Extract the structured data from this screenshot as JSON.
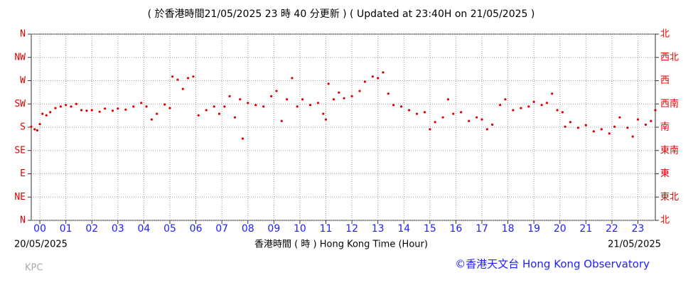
{
  "chart_data": {
    "type": "scatter",
    "title": "( 於香港時間21/05/2025 23 時 40 分更新 ) ( Updated at 23:40H on 21/05/2025 )",
    "x_label": "香港時間 ( 時 )  Hong Kong Time (Hour)",
    "start_date": "20/05/2025",
    "end_date": "21/05/2025",
    "station": "KPC",
    "credit": "©香港天文台 Hong Kong Observatory",
    "grid": true,
    "color": "#e00000",
    "xlim": [
      -0.33,
      23.67
    ],
    "xticks": [
      {
        "value": 0,
        "label": "00"
      },
      {
        "value": 1,
        "label": "01"
      },
      {
        "value": 2,
        "label": "02"
      },
      {
        "value": 3,
        "label": "03"
      },
      {
        "value": 4,
        "label": "04"
      },
      {
        "value": 5,
        "label": "05"
      },
      {
        "value": 6,
        "label": "06"
      },
      {
        "value": 7,
        "label": "07"
      },
      {
        "value": 8,
        "label": "08"
      },
      {
        "value": 9,
        "label": "09"
      },
      10,
      11,
      12,
      13,
      14,
      15,
      16,
      17,
      18,
      19,
      20,
      21,
      22,
      23
    ],
    "ylim": [
      0,
      360
    ],
    "yticks": [
      {
        "value": 0,
        "label": "N"
      },
      {
        "value": 45,
        "label": "NE"
      },
      {
        "value": 90,
        "label": "E"
      },
      {
        "value": 135,
        "label": "SE"
      },
      {
        "value": 180,
        "label": "S"
      },
      {
        "value": 225,
        "label": "SW"
      },
      {
        "value": 270,
        "label": "W"
      },
      {
        "value": 315,
        "label": "NW"
      },
      {
        "value": 360,
        "label": "N"
      }
    ],
    "y2lim": [
      0,
      360
    ],
    "y2ticks": [
      {
        "value": 0,
        "label": "北"
      },
      {
        "value": 45,
        "label": "東北"
      },
      {
        "value": 90,
        "label": "東"
      },
      {
        "value": 135,
        "label": "東南"
      },
      {
        "value": 180,
        "label": "南"
      },
      {
        "value": 225,
        "label": "西南"
      },
      {
        "value": 270,
        "label": "西"
      },
      {
        "value": 315,
        "label": "西北"
      },
      {
        "value": 360,
        "label": "北"
      }
    ],
    "x": [
      -0.33,
      -0.2,
      -0.1,
      0,
      0.1,
      0.25,
      0.4,
      0.6,
      0.8,
      1.0,
      1.2,
      1.4,
      1.6,
      1.8,
      2.0,
      2.3,
      2.5,
      2.8,
      3.0,
      3.3,
      3.6,
      3.9,
      4.1,
      4.3,
      4.5,
      4.8,
      5.0,
      5.1,
      5.3,
      5.5,
      5.7,
      5.9,
      6.1,
      6.4,
      6.7,
      6.9,
      7.1,
      7.3,
      7.5,
      7.7,
      7.8,
      8.0,
      8.3,
      8.6,
      8.9,
      9.1,
      9.3,
      9.5,
      9.7,
      9.9,
      10.1,
      10.4,
      10.7,
      10.9,
      11.0,
      11.1,
      11.3,
      11.5,
      11.7,
      12.0,
      12.3,
      12.5,
      12.8,
      13.0,
      13.2,
      13.4,
      13.6,
      13.9,
      14.2,
      14.5,
      14.8,
      15.0,
      15.2,
      15.5,
      15.7,
      15.9,
      16.2,
      16.5,
      16.8,
      17.0,
      17.2,
      17.4,
      17.7,
      17.9,
      18.2,
      18.5,
      18.8,
      19.0,
      19.3,
      19.5,
      19.7,
      19.9,
      20.1,
      20.2,
      20.4,
      20.7,
      21.0,
      21.3,
      21.6,
      21.9,
      22.1,
      22.3,
      22.6,
      22.8,
      23.0,
      23.3,
      23.5,
      23.67
    ],
    "values": [
      181,
      176,
      174,
      186,
      206,
      203,
      209,
      217,
      220,
      223,
      220,
      225,
      213,
      212,
      213,
      210,
      216,
      212,
      216,
      214,
      220,
      227,
      220,
      195,
      206,
      224,
      217,
      278,
      272,
      254,
      275,
      278,
      203,
      213,
      220,
      206,
      220,
      240,
      199,
      234,
      158,
      227,
      223,
      220,
      240,
      250,
      192,
      234,
      275,
      220,
      234,
      223,
      227,
      206,
      195,
      264,
      234,
      247,
      236,
      240,
      250,
      268,
      278,
      275,
      286,
      245,
      223,
      220,
      213,
      206,
      209,
      176,
      190,
      199,
      234,
      206,
      209,
      192,
      199,
      195,
      176,
      185,
      223,
      234,
      213,
      217,
      220,
      229,
      223,
      227,
      245,
      213,
      209,
      181,
      190,
      179,
      184,
      172,
      176,
      168,
      181,
      199,
      179,
      162,
      195,
      185,
      192,
      213
    ]
  }
}
